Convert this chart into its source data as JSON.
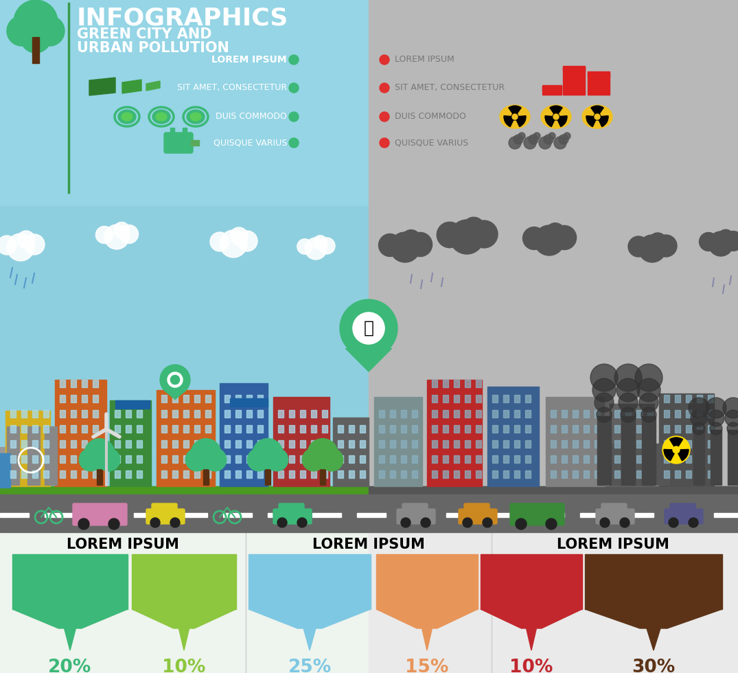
{
  "title": "INFOGRAPHICS",
  "subtitle1": "GREEN CITY AND",
  "subtitle2": "URBAN POLLUTION",
  "green_labels": [
    "LOREM IPSUM",
    "SIT AMET, CONSECTETUR",
    "DUIS COMMODO",
    "QUISQUE VARIUS"
  ],
  "pollution_labels": [
    "LOREM IPSUM",
    "SIT AMET, CONSECTETUR",
    "DUIS COMMODO",
    "QUISQUE VARIUS"
  ],
  "bottom_titles": [
    "LOREM IPSUM",
    "LOREM IPSUM",
    "LOREM IPSUM"
  ],
  "percentages": [
    "20%",
    "10%",
    "25%",
    "15%",
    "10%",
    "30%"
  ],
  "pct_colors": [
    "#3cb878",
    "#8dc63f",
    "#7ec8e3",
    "#e8955a",
    "#c1272d",
    "#5c3317"
  ],
  "bar_colors": [
    "#3cb878",
    "#8dc63f",
    "#7ec8e3",
    "#e8955a",
    "#c1272d",
    "#5c3317"
  ],
  "bg_left": "#8ecfdf",
  "bg_right": "#b8b8b8",
  "bg_bottom_left": "#e8f0e8",
  "bg_bottom_right": "#e8e8e8",
  "green_dot": "#3cb878",
  "red_dot": "#e03030",
  "panel_bg": "#95d5e5",
  "title_color": "white",
  "label_color_left": "white",
  "label_color_right": "#777777"
}
